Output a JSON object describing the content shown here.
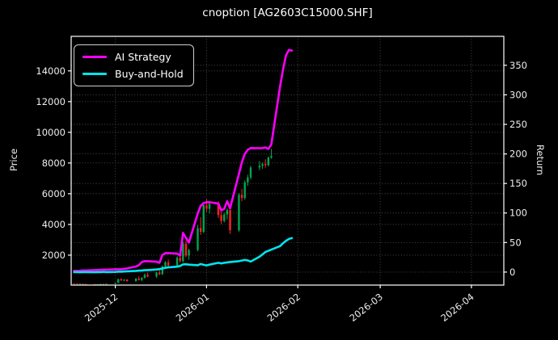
{
  "window": {
    "background": "#000000",
    "text_color": "#ffffff",
    "grid_color": "#555555"
  },
  "chart_data": {
    "type": "line+candlestick",
    "title": "cnoption [AG2603C15000.SHF]",
    "grid": true,
    "legend_position": "upper left",
    "x_axis": {
      "tick_labels": [
        "2025-12",
        "2026-01",
        "2026-02",
        "2026-03",
        "2026-04"
      ],
      "tick_dates": [
        "2025-12-01",
        "2026-01-01",
        "2026-02-01",
        "2026-03-01",
        "2026-04-01"
      ],
      "range": [
        "2025-11-16",
        "2026-04-12"
      ]
    },
    "left_axis": {
      "label": "Price",
      "ticks": [
        2000,
        4000,
        6000,
        8000,
        10000,
        12000,
        14000
      ],
      "range": [
        50,
        16250
      ]
    },
    "right_axis": {
      "label": "Return",
      "ticks": [
        0,
        50,
        100,
        150,
        200,
        250,
        300,
        350
      ],
      "range": [
        -22,
        399
      ]
    },
    "series": [
      {
        "name": "AI Strategy",
        "color": "#ff00ff",
        "axis": "right",
        "points": [
          [
            "2025-11-17",
            2.0
          ],
          [
            "2025-11-18",
            2.0
          ],
          [
            "2025-11-19",
            2.2
          ],
          [
            "2025-11-20",
            2.7
          ],
          [
            "2025-11-21",
            2.7
          ],
          [
            "2025-11-24",
            3.4
          ],
          [
            "2025-11-25",
            3.4
          ],
          [
            "2025-11-26",
            3.8
          ],
          [
            "2025-11-27",
            4.1
          ],
          [
            "2025-11-28",
            4.1
          ],
          [
            "2025-12-01",
            4.8
          ],
          [
            "2025-12-02",
            4.8
          ],
          [
            "2025-12-03",
            4.8
          ],
          [
            "2025-12-04",
            5.5
          ],
          [
            "2025-12-05",
            6.1
          ],
          [
            "2025-12-08",
            9.5
          ],
          [
            "2025-12-09",
            11.6
          ],
          [
            "2025-12-10",
            17.0
          ],
          [
            "2025-12-11",
            18.4
          ],
          [
            "2025-12-12",
            18.4
          ],
          [
            "2025-12-15",
            17.5
          ],
          [
            "2025-12-16",
            15.7
          ],
          [
            "2025-12-17",
            29.0
          ],
          [
            "2025-12-18",
            32.1
          ],
          [
            "2025-12-19",
            32.1
          ],
          [
            "2025-12-22",
            31.4
          ],
          [
            "2025-12-23",
            28.0
          ],
          [
            "2025-12-24",
            66.3
          ],
          [
            "2025-12-25",
            58.0
          ],
          [
            "2025-12-26",
            50.0
          ],
          [
            "2025-12-29",
            99.0
          ],
          [
            "2025-12-30",
            112.0
          ],
          [
            "2025-12-31",
            116.8
          ],
          [
            "2026-01-01",
            118.2
          ],
          [
            "2026-01-02",
            118.2
          ],
          [
            "2026-01-05",
            116.0
          ],
          [
            "2026-01-06",
            104.5
          ],
          [
            "2026-01-07",
            107.0
          ],
          [
            "2026-01-08",
            120.0
          ],
          [
            "2026-01-09",
            108.0
          ],
          [
            "2026-01-12",
            166.0
          ],
          [
            "2026-01-13",
            186.0
          ],
          [
            "2026-01-14",
            200.0
          ],
          [
            "2026-01-15",
            207.0
          ],
          [
            "2026-01-16",
            210.0
          ],
          [
            "2026-01-19",
            209.7
          ],
          [
            "2026-01-20",
            209.7
          ],
          [
            "2026-01-21",
            211.0
          ],
          [
            "2026-01-22",
            208.3
          ],
          [
            "2026-01-23",
            216.0
          ],
          [
            "2026-01-26",
            315.0
          ],
          [
            "2026-01-27",
            343.0
          ],
          [
            "2026-01-28",
            367.0
          ],
          [
            "2026-01-29",
            376.0
          ],
          [
            "2026-01-30",
            375.0
          ]
        ]
      },
      {
        "name": "Buy-and-Hold",
        "color": "#00e5ee",
        "axis": "right",
        "points": [
          [
            "2025-11-17",
            0
          ],
          [
            "2025-11-18",
            0
          ],
          [
            "2025-11-19",
            -0.3
          ],
          [
            "2025-11-20",
            0
          ],
          [
            "2025-11-21",
            0
          ],
          [
            "2025-11-24",
            -0.3
          ],
          [
            "2025-11-25",
            0
          ],
          [
            "2025-11-26",
            0
          ],
          [
            "2025-11-27",
            0.3
          ],
          [
            "2025-11-28",
            0
          ],
          [
            "2025-12-01",
            0.3
          ],
          [
            "2025-12-02",
            0.7
          ],
          [
            "2025-12-03",
            0.7
          ],
          [
            "2025-12-04",
            1.0
          ],
          [
            "2025-12-05",
            1.4
          ],
          [
            "2025-12-08",
            2.0
          ],
          [
            "2025-12-09",
            2.4
          ],
          [
            "2025-12-10",
            2.7
          ],
          [
            "2025-12-11",
            3.1
          ],
          [
            "2025-12-12",
            3.4
          ],
          [
            "2025-12-15",
            4.4
          ],
          [
            "2025-12-16",
            5.1
          ],
          [
            "2025-12-17",
            6.1
          ],
          [
            "2025-12-18",
            7.2
          ],
          [
            "2025-12-19",
            7.9
          ],
          [
            "2025-12-22",
            9.2
          ],
          [
            "2025-12-23",
            10.2
          ],
          [
            "2025-12-24",
            13.0
          ],
          [
            "2025-12-25",
            13.3
          ],
          [
            "2025-12-26",
            12.6
          ],
          [
            "2025-12-29",
            11.6
          ],
          [
            "2025-12-30",
            13.7
          ],
          [
            "2025-12-31",
            12.3
          ],
          [
            "2026-01-01",
            11.3
          ],
          [
            "2026-01-02",
            12.6
          ],
          [
            "2026-01-05",
            15.7
          ],
          [
            "2026-01-06",
            14.7
          ],
          [
            "2026-01-07",
            15.7
          ],
          [
            "2026-01-08",
            16.4
          ],
          [
            "2026-01-09",
            17.1
          ],
          [
            "2026-01-12",
            18.4
          ],
          [
            "2026-01-13",
            19.5
          ],
          [
            "2026-01-14",
            20.5
          ],
          [
            "2026-01-15",
            19.8
          ],
          [
            "2026-01-16",
            17.8
          ],
          [
            "2026-01-19",
            26.0
          ],
          [
            "2026-01-20",
            30.0
          ],
          [
            "2026-01-21",
            34.0
          ],
          [
            "2026-01-22",
            36.0
          ],
          [
            "2026-01-23",
            38.0
          ],
          [
            "2026-01-26",
            44.0
          ],
          [
            "2026-01-27",
            49.0
          ],
          [
            "2026-01-28",
            53.0
          ],
          [
            "2026-01-29",
            56.0
          ],
          [
            "2026-01-30",
            57.5
          ]
        ]
      }
    ],
    "candles": {
      "axis": "left",
      "up_color": "#00a550",
      "down_color": "#ff2020",
      "ohlc": [
        [
          "2025-11-17",
          150,
          165,
          140,
          145
        ],
        [
          "2025-11-18",
          145,
          150,
          125,
          130
        ],
        [
          "2025-11-19",
          130,
          140,
          120,
          135
        ],
        [
          "2025-11-20",
          135,
          138,
          110,
          115
        ],
        [
          "2025-11-21",
          115,
          125,
          105,
          110
        ],
        [
          "2025-11-24",
          110,
          120,
          95,
          100
        ],
        [
          "2025-11-25",
          100,
          115,
          95,
          110
        ],
        [
          "2025-11-26",
          110,
          130,
          105,
          125
        ],
        [
          "2025-11-27",
          125,
          135,
          115,
          120
        ],
        [
          "2025-11-28",
          120,
          140,
          115,
          135
        ],
        [
          "2025-12-01",
          140,
          210,
          130,
          190
        ],
        [
          "2025-12-02",
          195,
          480,
          185,
          430
        ],
        [
          "2025-12-03",
          430,
          500,
          330,
          350
        ],
        [
          "2025-12-04",
          350,
          430,
          300,
          410
        ],
        [
          "2025-12-05",
          410,
          440,
          280,
          300
        ],
        [
          "2025-12-08",
          300,
          520,
          280,
          470
        ],
        [
          "2025-12-09",
          470,
          620,
          350,
          380
        ],
        [
          "2025-12-10",
          380,
          560,
          300,
          530
        ],
        [
          "2025-12-11",
          530,
          820,
          460,
          720
        ],
        [
          "2025-12-12",
          720,
          870,
          560,
          610
        ],
        [
          "2025-12-15",
          610,
          920,
          510,
          870
        ],
        [
          "2025-12-16",
          870,
          1150,
          700,
          760
        ],
        [
          "2025-12-17",
          760,
          1320,
          710,
          1270
        ],
        [
          "2025-12-18",
          1270,
          1620,
          1120,
          1530
        ],
        [
          "2025-12-19",
          1530,
          1720,
          1210,
          1320
        ],
        [
          "2025-12-22",
          1320,
          1930,
          1220,
          1830
        ],
        [
          "2025-12-23",
          1830,
          2030,
          1510,
          1620
        ],
        [
          "2025-12-24",
          1620,
          2900,
          1520,
          2750
        ],
        [
          "2025-12-25",
          2750,
          2950,
          1850,
          1980
        ],
        [
          "2025-12-26",
          1980,
          2420,
          1700,
          2330
        ],
        [
          "2025-12-29",
          2330,
          3950,
          2250,
          3760
        ],
        [
          "2025-12-30",
          3760,
          4480,
          3320,
          3520
        ],
        [
          "2025-12-31",
          3520,
          5450,
          3430,
          5250
        ],
        [
          "2026-01-01",
          5250,
          5650,
          4820,
          5020
        ],
        [
          "2026-01-02",
          5020,
          5430,
          4720,
          5340
        ],
        [
          "2026-01-05",
          5340,
          5520,
          4420,
          4610
        ],
        [
          "2026-01-06",
          4610,
          4830,
          4020,
          4230
        ],
        [
          "2026-01-07",
          4230,
          4760,
          4120,
          4650
        ],
        [
          "2026-01-08",
          4650,
          5040,
          4330,
          4940
        ],
        [
          "2026-01-09",
          4940,
          5120,
          3380,
          3620
        ],
        [
          "2026-01-12",
          3620,
          6050,
          3520,
          5930
        ],
        [
          "2026-01-13",
          5930,
          6320,
          5510,
          5720
        ],
        [
          "2026-01-14",
          5720,
          6870,
          5610,
          6740
        ],
        [
          "2026-01-15",
          6740,
          7240,
          6520,
          7060
        ],
        [
          "2026-01-16",
          7060,
          7820,
          6930,
          7710
        ],
        [
          "2026-01-19",
          7710,
          8120,
          7530,
          7820
        ],
        [
          "2026-01-20",
          7820,
          8040,
          7610,
          7930
        ],
        [
          "2026-01-21",
          7930,
          8240,
          7690,
          7860
        ],
        [
          "2026-01-22",
          7860,
          8430,
          7780,
          8360
        ],
        [
          "2026-01-23",
          8360,
          8920,
          8270,
          8460
        ]
      ]
    }
  }
}
